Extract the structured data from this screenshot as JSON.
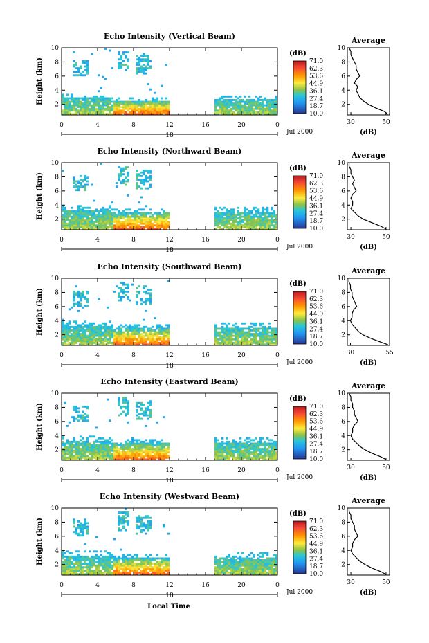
{
  "figure": {
    "bottom_xlabel": "Local Time"
  },
  "chart_data": [
    {
      "type": "heatmap",
      "title": "Echo Intensity (Vertical Beam)",
      "ylabel": "Height (km)",
      "ylim": [
        0.5,
        10.0
      ],
      "yticks": [
        "2",
        "4",
        "6",
        "8",
        "10"
      ],
      "xlim": [
        0,
        24
      ],
      "xticks": [
        "0",
        "4",
        "8",
        "12",
        "16",
        "20",
        "0"
      ],
      "date_label": "18",
      "month_year": "Jul 2000",
      "colorbar": {
        "unit": "(dB)",
        "levels": [
          "71.0",
          "62.3",
          "53.6",
          "44.9",
          "36.1",
          "27.4",
          "18.7",
          "10.0"
        ]
      },
      "data_gap": [
        12,
        17
      ],
      "average_profile": {
        "title": "Average",
        "xlabel": "(dB)",
        "xticks": [
          "30",
          "50"
        ],
        "xlim": [
          28,
          52
        ],
        "yticks": [
          "2",
          "4",
          "6",
          "8",
          "10"
        ],
        "heights": [
          10,
          9.5,
          9,
          8.5,
          8,
          7.5,
          7,
          6.5,
          6,
          5.5,
          5,
          4.5,
          4,
          3.5,
          3,
          2.5,
          2,
          1.5,
          1,
          0.6
        ],
        "values": [
          29,
          30,
          30,
          31,
          32,
          33,
          33,
          34,
          35,
          33,
          32,
          34,
          33,
          34,
          35,
          37,
          40,
          44,
          49,
          51
        ]
      }
    },
    {
      "type": "heatmap",
      "title": "Echo Intensity (Northward Beam)",
      "ylabel": "Height (km)",
      "ylim": [
        0.5,
        10.0
      ],
      "yticks": [
        "2",
        "4",
        "6",
        "8",
        "10"
      ],
      "xlim": [
        0,
        24
      ],
      "xticks": [
        "0",
        "4",
        "8",
        "12",
        "16",
        "20",
        "0"
      ],
      "date_label": "18",
      "month_year": "Jul 2000",
      "colorbar": {
        "unit": "(dB)",
        "levels": [
          "71.0",
          "62.3",
          "53.6",
          "44.9",
          "36.1",
          "27.4",
          "18.7",
          "10.0"
        ]
      },
      "data_gap": [
        12,
        17
      ],
      "average_profile": {
        "title": "Average",
        "xlabel": "(dB)",
        "xticks": [
          "30",
          "50"
        ],
        "xlim": [
          28,
          52
        ],
        "yticks": [
          "2",
          "4",
          "6",
          "8",
          "10"
        ],
        "heights": [
          10,
          9.5,
          9,
          8.5,
          8,
          7.5,
          7,
          6.5,
          6,
          5.5,
          5,
          4.5,
          4,
          3.5,
          3,
          2.5,
          2,
          1.5,
          1,
          0.6
        ],
        "values": [
          29,
          29,
          30,
          30,
          31,
          32,
          31,
          32,
          33,
          31,
          30,
          31,
          31,
          30,
          32,
          34,
          37,
          42,
          47,
          50
        ]
      }
    },
    {
      "type": "heatmap",
      "title": "Echo Intensity (Southward Beam)",
      "ylabel": "Height (km)",
      "ylim": [
        0.5,
        10.0
      ],
      "yticks": [
        "2",
        "4",
        "6",
        "8",
        "10"
      ],
      "xlim": [
        0,
        24
      ],
      "xticks": [
        "0",
        "4",
        "8",
        "12",
        "16",
        "20",
        "0"
      ],
      "date_label": "18",
      "month_year": "Jul 2000",
      "colorbar": {
        "unit": "(dB)",
        "levels": [
          "71.0",
          "62.3",
          "53.6",
          "44.9",
          "36.1",
          "27.4",
          "18.7",
          "10.0"
        ]
      },
      "data_gap": [
        12,
        17
      ],
      "average_profile": {
        "title": "Average",
        "xlabel": "(dB)",
        "xticks": [
          "30",
          "55"
        ],
        "xlim": [
          28,
          55
        ],
        "yticks": [
          "2",
          "4",
          "6",
          "8",
          "10"
        ],
        "heights": [
          10,
          9.5,
          9,
          8.5,
          8,
          7.5,
          7,
          6.5,
          6,
          5.5,
          5,
          4.5,
          4,
          3.5,
          3,
          2.5,
          2,
          1.5,
          1,
          0.6
        ],
        "values": [
          29,
          29,
          30,
          30,
          31,
          31,
          32,
          33,
          34,
          32,
          31,
          31,
          30,
          31,
          33,
          35,
          38,
          43,
          49,
          54
        ]
      }
    },
    {
      "type": "heatmap",
      "title": "Echo Intensity (Eastward Beam)",
      "ylabel": "Height (km)",
      "ylim": [
        0.5,
        10.0
      ],
      "yticks": [
        "2",
        "4",
        "6",
        "8",
        "10"
      ],
      "xlim": [
        0,
        24
      ],
      "xticks": [
        "0",
        "4",
        "8",
        "12",
        "16",
        "20",
        "0"
      ],
      "date_label": "18",
      "month_year": "Jul 2000",
      "colorbar": {
        "unit": "(dB)",
        "levels": [
          "71.0",
          "62.3",
          "53.6",
          "44.9",
          "36.1",
          "27.4",
          "18.7",
          "10.0"
        ]
      },
      "data_gap": [
        12,
        17
      ],
      "average_profile": {
        "title": "Average",
        "xlabel": "(dB)",
        "xticks": [
          "30",
          "50"
        ],
        "xlim": [
          28,
          52
        ],
        "yticks": [
          "2",
          "4",
          "6",
          "8",
          "10"
        ],
        "heights": [
          10,
          9.5,
          9,
          8.5,
          8,
          7.5,
          7,
          6.5,
          6,
          5.5,
          5,
          4.5,
          4,
          3.5,
          3,
          2.5,
          2,
          1.5,
          1,
          0.6
        ],
        "values": [
          29,
          30,
          30,
          31,
          31,
          32,
          32,
          33,
          34,
          32,
          31,
          31,
          30,
          31,
          33,
          35,
          38,
          42,
          47,
          50
        ]
      }
    },
    {
      "type": "heatmap",
      "title": "Echo Intensity (Westward Beam)",
      "ylabel": "Height (km)",
      "ylim": [
        0.5,
        10.0
      ],
      "yticks": [
        "2",
        "4",
        "6",
        "8",
        "10"
      ],
      "xlim": [
        0,
        24
      ],
      "xticks": [
        "0",
        "4",
        "8",
        "12",
        "16",
        "20",
        "0"
      ],
      "date_label": "18",
      "month_year": "Jul 2000",
      "colorbar": {
        "unit": "(dB)",
        "levels": [
          "71.0",
          "62.3",
          "53.6",
          "44.9",
          "36.1",
          "27.4",
          "18.7",
          "10.0"
        ]
      },
      "data_gap": [
        12,
        17
      ],
      "average_profile": {
        "title": "Average",
        "xlabel": "(dB)",
        "xticks": [
          "30",
          "50"
        ],
        "xlim": [
          28,
          52
        ],
        "yticks": [
          "2",
          "4",
          "6",
          "8",
          "10"
        ],
        "heights": [
          10,
          9.5,
          9,
          8.5,
          8,
          7.5,
          7,
          6.5,
          6,
          5.5,
          5,
          4.5,
          4,
          3.5,
          3,
          2.5,
          2,
          1.5,
          1,
          0.6
        ],
        "values": [
          29,
          29,
          30,
          30,
          31,
          32,
          32,
          33,
          34,
          32,
          31,
          31,
          30,
          31,
          33,
          35,
          38,
          42,
          47,
          50
        ]
      }
    }
  ]
}
